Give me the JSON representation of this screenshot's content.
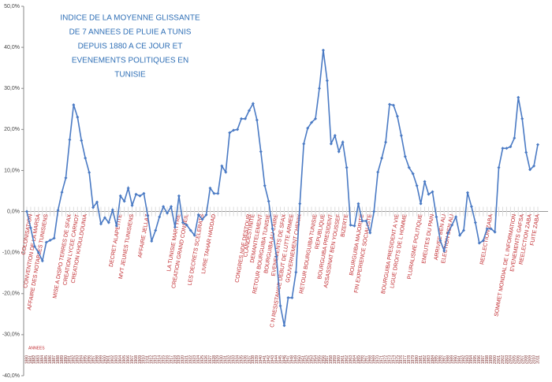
{
  "chart_data": {
    "type": "line",
    "title": [
      "INDICE DE LA MOYENNE GLISSANTE",
      "DE 7 ANNEES DE PLUIE A TUNIS",
      "DEPUIS 1880 A CE JOUR ET",
      "EVENEMENTS POLITIQUES EN",
      "TUNISIE"
    ],
    "x_label": "ANNEES",
    "categories": [
      "1880",
      "1881",
      "1882",
      "1883",
      "1884",
      "1885",
      "1886",
      "1887",
      "1888",
      "1889",
      "1890",
      "1891",
      "1892",
      "1893",
      "1894",
      "1895",
      "1896",
      "1897",
      "1898",
      "1899",
      "1900",
      "1901",
      "1902",
      "1903",
      "1904",
      "1905",
      "1906",
      "1907",
      "1908",
      "1909",
      "1910",
      "1911",
      "1912",
      "1913",
      "1914",
      "1915",
      "1916",
      "1917",
      "1918",
      "1919",
      "1920",
      "1921",
      "1922",
      "1923",
      "1924",
      "1925",
      "1926",
      "1927",
      "1928",
      "1929",
      "1930",
      "1931",
      "1932",
      "1933",
      "1934",
      "1935",
      "1936",
      "1937",
      "1938",
      "1939",
      "1940",
      "1941",
      "1942",
      "1943",
      "1944",
      "1945",
      "1946",
      "1947",
      "1948",
      "1949",
      "1950",
      "1951",
      "1952",
      "1953",
      "1954",
      "1955",
      "1956",
      "1957",
      "1958",
      "1959",
      "1960",
      "1961",
      "1962",
      "1963",
      "1964",
      "1965",
      "1966",
      "1967",
      "1968",
      "1969",
      "1970",
      "1971",
      "1972",
      "1973",
      "1974",
      "1975",
      "1976",
      "1977",
      "1978",
      "1979",
      "1980",
      "1981",
      "1982",
      "1983",
      "1984",
      "1985",
      "1986",
      "1987",
      "1988",
      "1989",
      "1990",
      "1991",
      "1992",
      "1993",
      "1994",
      "1995",
      "1996",
      "1997",
      "1998",
      "1999",
      "2000",
      "2001",
      "2002",
      "2003",
      "2004",
      "2005",
      "2006",
      "2007",
      "2008",
      "2009",
      "2010",
      "2011"
    ],
    "values": [
      0,
      -4,
      -8.5,
      -10,
      -12,
      -7.5,
      -7,
      -6.5,
      0.3,
      4.7,
      8.2,
      17.5,
      26,
      23,
      17.3,
      13,
      9.5,
      1,
      2.3,
      -3,
      -1.5,
      -2.7,
      0.4,
      -3.5,
      3.8,
      2.5,
      5.7,
      1.5,
      4.2,
      3.8,
      4.4,
      -1,
      -7.2,
      -4.6,
      -1.3,
      1.2,
      -0.4,
      1.2,
      -3.8,
      3.8,
      -2.7,
      -3.3,
      -4.6,
      -5.8,
      -0.8,
      -1.9,
      -0.8,
      5.7,
      4.4,
      4.4,
      11.1,
      9.6,
      19.2,
      19.8,
      20,
      22.6,
      22.6,
      24.6,
      26.3,
      22.3,
      14.6,
      6.3,
      2.5,
      -4.2,
      -11,
      -23,
      -27.8,
      -21,
      -21,
      -14.8,
      1.9,
      16.5,
      20.3,
      21.7,
      22.6,
      30,
      39.3,
      31.9,
      16.5,
      18.5,
      14.6,
      16.9,
      10.7,
      -3.3,
      -3.5,
      1.9,
      -2.3,
      -2.3,
      -5.2,
      0,
      9.6,
      13,
      16.9,
      26.1,
      25.9,
      23.2,
      18.5,
      13.4,
      10.7,
      9.2,
      6.3,
      1.9,
      7.3,
      4.2,
      4.8,
      -1.3,
      -7.1,
      -9.6,
      -5.2,
      -3.3,
      -1.3,
      -5.8,
      -4.6,
      4.6,
      1.2,
      -2.7,
      -7.7,
      -7.1,
      -4.2,
      -4.2,
      -5,
      10.7,
      15.4,
      15.4,
      15.8,
      17.9,
      27.8,
      22.6,
      14.4,
      10.2,
      11.1,
      16.3
    ],
    "color": "#4a7ac4",
    "annotation_color": "#c0282d",
    "ylim": [
      -40,
      50
    ],
    "yticks": [
      {
        "value": -40,
        "label": "-40,0%"
      },
      {
        "value": -30,
        "label": "-30,0%"
      },
      {
        "value": -20,
        "label": "-20,0%"
      },
      {
        "value": -10,
        "label": "-10,0%"
      },
      {
        "value": 0,
        "label": "0,0%"
      },
      {
        "value": 10,
        "label": "10,0%"
      },
      {
        "value": 20,
        "label": "20,0%"
      },
      {
        "value": 30,
        "label": "30,0%"
      },
      {
        "value": 40,
        "label": "40,0%"
      },
      {
        "value": 50,
        "label": "50,0%"
      }
    ],
    "annotations": [
      {
        "text": "COLONISATION",
        "x": 1881
      },
      {
        "text": "CONVENTION DE LA MARSA",
        "x": 1883
      },
      {
        "text": "AFFAIRE DES NOTABLES TUNISIENS",
        "x": 1885
      },
      {
        "text": "MISE A DISPO TERRES DE SFAX",
        "x": 1891
      },
      {
        "text": "CREATION LYCEE CARNOT",
        "x": 1893
      },
      {
        "text": "CREATION KHOULDOUNIA",
        "x": 1895
      },
      {
        "text": "DECRET ALAPETITE",
        "x": 1904
      },
      {
        "text": "MVT JEUNES TUNISIENS",
        "x": 1907
      },
      {
        "text": "AFFAIRE JELLAZ",
        "x": 1911
      },
      {
        "text": "LA TUNISIE MARTYRE",
        "x": 1919
      },
      {
        "text": "CREATION GRAND CONSEIL",
        "x": 1921
      },
      {
        "text": "LES DECRETS SCELERATS",
        "x": 1925
      },
      {
        "text": "LIVRE TAHAR HADDAD",
        "x": 1928
      },
      {
        "text": "CONGRES NDE DESTOUR",
        "x": 1937
      },
      {
        "text": "CLANDESTINITE",
        "x": 1938
      },
      {
        "text": "DEMANTELEMENT",
        "x": 1940
      },
      {
        "text": "RETOUR BOURGUIBA TUNISIE",
        "x": 1942
      },
      {
        "text": "BOURGUIBA AU CAIRE",
        "x": 1944
      },
      {
        "text": "EVENEMENTS DE SFAX",
        "x": 1946
      },
      {
        "text": "C N RESISTANCE DEBUT DE LUTTE ARMEE",
        "x": 1948
      },
      {
        "text": "GOUVERNEMENT CHENIK",
        "x": 1950
      },
      {
        "text": "RETOUR BOURGUIBA TUNISIE",
        "x": 1954
      },
      {
        "text": "REPUBLIQUE",
        "x": 1956
      },
      {
        "text": "BOURGUIBA PRESIDENT",
        "x": 1958
      },
      {
        "text": "ASSASSINAT BEN YOUSSEF",
        "x": 1960
      },
      {
        "text": "BIZERTE",
        "x": 1962
      },
      {
        "text": "BOURGUIBA MAJORITE",
        "x": 1966
      },
      {
        "text": "FIN EXPERIENCE SOCIALISTE",
        "x": 1968
      },
      {
        "text": "BOURGUIBA PRESIDENT A VIE",
        "x": 1975
      },
      {
        "text": "LIGUE DROITS DE L HOMME",
        "x": 1977
      },
      {
        "text": "PLURALISME POLITIQUE",
        "x": 1981
      },
      {
        "text": "EMEUTES DU PAIN",
        "x": 1984
      },
      {
        "text": "ARRIVEE BEN ALI",
        "x": 1987
      },
      {
        "text": "ELECTION BEN ALI",
        "x": 1989
      },
      {
        "text": "REELECTION ZABA",
        "x": 1999
      },
      {
        "text": "SOMMET MONDIAL DE L INFORMATION",
        "x": 2005
      },
      {
        "text": "EVENEMENTS GAFSA",
        "x": 2007
      },
      {
        "text": "REELECTION ZABA",
        "x": 2009
      },
      {
        "text": "FUITE ZABA",
        "x": 2011
      }
    ]
  }
}
